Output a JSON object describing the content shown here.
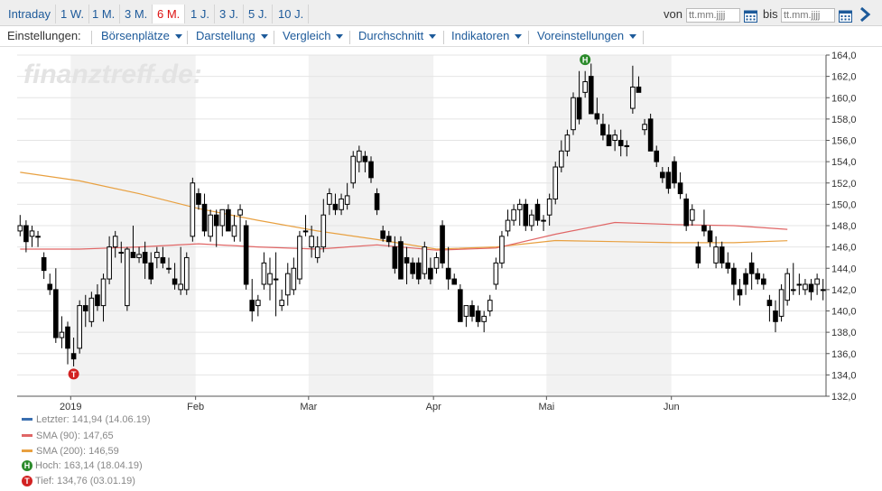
{
  "tabs": [
    {
      "label": "Intraday",
      "active": false
    },
    {
      "label": "1 W.",
      "active": false
    },
    {
      "label": "1 M.",
      "active": false
    },
    {
      "label": "3 M.",
      "active": false
    },
    {
      "label": "6 M.",
      "active": true
    },
    {
      "label": "1 J.",
      "active": false
    },
    {
      "label": "3 J.",
      "active": false
    },
    {
      "label": "5 J.",
      "active": false
    },
    {
      "label": "10 J.",
      "active": false
    }
  ],
  "range": {
    "from_label": "von",
    "to_label": "bis",
    "placeholder": "tt.mm.jjjj"
  },
  "toolbar": {
    "label": "Einstellungen:",
    "menus": [
      "Börsenplätze",
      "Darstellung",
      "Vergleich",
      "Durchschnitt",
      "Indikatoren",
      "Voreinstellungen"
    ]
  },
  "watermark": "finanztreff.de:",
  "legend": {
    "last": "Letzter: 141,94 (14.06.19)",
    "sma90": "SMA (90): 147,65",
    "sma200": "SMA (200): 146,59",
    "high": "Hoch: 163,14 (18.04.19)",
    "low": "Tief: 134,76 (03.01.19)",
    "high_badge": "H",
    "low_badge": "T"
  },
  "colors": {
    "up": "#ffffff",
    "down": "#000000",
    "sma90": "#e06666",
    "sma200": "#e8a040",
    "last": "#3a6fb0",
    "high": "#2a8a2a",
    "low": "#d22222",
    "band": "#f2f2f2"
  },
  "chart_data": {
    "type": "candlestick",
    "ylim": [
      132,
      164
    ],
    "yticks": [
      "132,0",
      "134,0",
      "136,0",
      "138,0",
      "140,0",
      "142,0",
      "144,0",
      "146,0",
      "148,0",
      "150,0",
      "152,0",
      "154,0",
      "156,0",
      "158,0",
      "160,0",
      "162,0",
      "164,0"
    ],
    "xlabels": [
      {
        "label": "2019",
        "i": 9
      },
      {
        "label": "Feb",
        "i": 30
      },
      {
        "label": "Mar",
        "i": 49
      },
      {
        "label": "Apr",
        "i": 70
      },
      {
        "label": "Mai",
        "i": 89
      },
      {
        "label": "Jun",
        "i": 110
      }
    ],
    "bands": [
      [
        9,
        29
      ],
      [
        49,
        69
      ],
      [
        89,
        109
      ]
    ],
    "candles": [
      [
        147.5,
        149.0,
        147.0,
        148.0
      ],
      [
        148.0,
        148.5,
        145.5,
        146.5
      ],
      [
        147.0,
        148.0,
        146.0,
        147.5
      ],
      [
        147.0,
        147.5,
        146.0,
        147.0
      ],
      [
        145.0,
        145.5,
        143.0,
        143.8
      ],
      [
        142.5,
        143.5,
        141.5,
        142.0
      ],
      [
        142.0,
        144.0,
        137.0,
        137.5
      ],
      [
        137.5,
        139.5,
        136.5,
        138.0
      ],
      [
        138.5,
        139.0,
        135.0,
        136.5
      ],
      [
        136.0,
        137.5,
        134.8,
        135.5
      ],
      [
        136.5,
        141.0,
        136.0,
        140.5
      ],
      [
        140.5,
        141.5,
        138.5,
        140.0
      ],
      [
        139.0,
        141.8,
        138.5,
        141.2
      ],
      [
        141.5,
        142.5,
        140.0,
        140.5
      ],
      [
        140.5,
        143.5,
        139.0,
        143.0
      ],
      [
        143.0,
        147.0,
        142.5,
        146.0
      ],
      [
        146.0,
        147.5,
        145.0,
        147.0
      ],
      [
        145.5,
        146.5,
        144.5,
        145.5
      ],
      [
        140.5,
        146.0,
        140.0,
        145.8
      ],
      [
        145.5,
        148.0,
        145.0,
        145.0
      ],
      [
        145.0,
        146.0,
        144.5,
        145.3
      ],
      [
        145.5,
        146.5,
        143.0,
        144.5
      ],
      [
        144.5,
        145.5,
        142.5,
        143.0
      ],
      [
        145.0,
        146.0,
        144.0,
        145.5
      ],
      [
        145.0,
        146.0,
        144.0,
        144.5
      ],
      [
        144.0,
        145.0,
        143.5,
        144.0
      ],
      [
        143.0,
        144.5,
        142.0,
        142.5
      ],
      [
        142.0,
        146.0,
        141.5,
        142.5
      ],
      [
        142.0,
        145.5,
        141.5,
        145.0
      ],
      [
        147.0,
        152.5,
        146.5,
        152.0
      ],
      [
        151.0,
        151.5,
        149.5,
        150.0
      ],
      [
        150.0,
        151.0,
        147.0,
        147.5
      ],
      [
        147.0,
        149.5,
        146.5,
        149.0
      ],
      [
        149.0,
        149.5,
        146.0,
        148.0
      ],
      [
        148.0,
        149.5,
        147.0,
        149.5
      ],
      [
        149.5,
        150.0,
        147.5,
        147.5
      ],
      [
        147.0,
        149.0,
        146.5,
        148.0
      ],
      [
        149.0,
        150.0,
        146.5,
        149.5
      ],
      [
        148.0,
        148.5,
        142.0,
        142.5
      ],
      [
        141.0,
        143.0,
        139.0,
        140.0
      ],
      [
        140.5,
        141.5,
        139.5,
        141.0
      ],
      [
        142.5,
        145.5,
        142.0,
        144.5
      ],
      [
        142.5,
        145.0,
        141.0,
        143.5
      ],
      [
        143.0,
        145.5,
        139.5,
        143.0
      ],
      [
        140.5,
        142.0,
        140.0,
        141.0
      ],
      [
        141.5,
        144.5,
        140.5,
        143.5
      ],
      [
        142.0,
        145.0,
        141.5,
        144.0
      ],
      [
        143.0,
        147.5,
        142.5,
        147.0
      ],
      [
        147.5,
        149.0,
        147.0,
        147.5
      ],
      [
        146.0,
        148.0,
        145.0,
        147.0
      ],
      [
        145.0,
        147.0,
        144.5,
        146.0
      ],
      [
        146.0,
        150.5,
        145.5,
        149.0
      ],
      [
        150.0,
        151.5,
        149.0,
        151.0
      ],
      [
        150.0,
        151.0,
        149.0,
        149.5
      ],
      [
        149.5,
        151.0,
        149.0,
        150.5
      ],
      [
        150.0,
        152.0,
        149.5,
        150.8
      ],
      [
        152.0,
        155.0,
        151.5,
        154.5
      ],
      [
        154.0,
        155.5,
        153.0,
        155.0
      ],
      [
        154.5,
        155.0,
        153.0,
        154.0
      ],
      [
        154.0,
        154.5,
        152.0,
        152.5
      ],
      [
        151.0,
        151.5,
        149.0,
        149.5
      ],
      [
        147.5,
        148.0,
        146.5,
        146.8
      ],
      [
        147.0,
        147.5,
        146.0,
        146.5
      ],
      [
        146.0,
        147.0,
        143.5,
        144.0
      ],
      [
        146.5,
        147.0,
        143.0,
        143.0
      ],
      [
        145.0,
        146.0,
        142.5,
        144.5
      ],
      [
        144.5,
        145.0,
        143.0,
        143.5
      ],
      [
        144.5,
        145.0,
        142.5,
        143.0
      ],
      [
        143.5,
        146.5,
        143.0,
        146.0
      ],
      [
        144.0,
        145.0,
        142.5,
        143.0
      ],
      [
        144.0,
        145.5,
        143.5,
        145.0
      ],
      [
        148.0,
        148.5,
        144.0,
        144.5
      ],
      [
        144.0,
        146.0,
        142.0,
        143.0
      ],
      [
        143.0,
        143.5,
        142.5,
        142.5
      ],
      [
        142.0,
        142.5,
        139.0,
        139.0
      ],
      [
        139.5,
        140.5,
        138.5,
        140.5
      ],
      [
        140.5,
        141.0,
        139.0,
        139.5
      ],
      [
        140.0,
        140.5,
        138.5,
        139.0
      ],
      [
        139.0,
        140.0,
        138.0,
        139.5
      ],
      [
        140.0,
        141.5,
        139.5,
        141.0
      ],
      [
        142.5,
        145.0,
        142.0,
        144.5
      ],
      [
        144.5,
        147.5,
        144.0,
        147.0
      ],
      [
        147.5,
        149.5,
        147.0,
        148.5
      ],
      [
        148.5,
        150.0,
        148.0,
        149.5
      ],
      [
        149.5,
        150.5,
        148.0,
        150.0
      ],
      [
        150.0,
        150.5,
        147.5,
        148.0
      ],
      [
        148.0,
        149.5,
        147.5,
        149.0
      ],
      [
        150.0,
        150.5,
        148.0,
        148.5
      ],
      [
        148.5,
        149.0,
        147.5,
        148.5
      ],
      [
        149.0,
        151.0,
        148.0,
        150.5
      ],
      [
        150.5,
        154.0,
        150.0,
        153.5
      ],
      [
        153.5,
        156.0,
        153.0,
        155.0
      ],
      [
        155.0,
        157.0,
        154.5,
        156.5
      ],
      [
        157.0,
        160.5,
        156.5,
        160.0
      ],
      [
        160.0,
        162.5,
        157.5,
        158.0
      ],
      [
        160.5,
        162.5,
        160.0,
        161.5
      ],
      [
        162.0,
        163.2,
        158.5,
        158.5
      ],
      [
        158.5,
        160.0,
        157.5,
        158.0
      ],
      [
        157.5,
        158.5,
        156.0,
        156.5
      ],
      [
        156.5,
        157.5,
        155.5,
        155.5
      ],
      [
        156.0,
        157.0,
        155.0,
        156.5
      ],
      [
        156.0,
        157.0,
        154.5,
        155.5
      ],
      [
        155.5,
        156.0,
        154.5,
        155.5
      ],
      [
        159.0,
        163.0,
        158.5,
        161.0
      ],
      [
        161.0,
        162.0,
        160.5,
        160.5
      ],
      [
        157.0,
        158.0,
        156.5,
        157.5
      ],
      [
        158.0,
        158.5,
        155.0,
        155.0
      ],
      [
        155.0,
        155.5,
        153.5,
        154.0
      ],
      [
        153.0,
        153.5,
        152.0,
        152.5
      ],
      [
        153.0,
        153.5,
        151.0,
        151.5
      ],
      [
        154.0,
        154.5,
        151.5,
        152.0
      ],
      [
        152.0,
        153.0,
        150.5,
        151.0
      ],
      [
        150.5,
        151.0,
        147.5,
        148.0
      ],
      [
        148.5,
        150.0,
        148.0,
        149.5
      ],
      [
        146.0,
        146.5,
        144.0,
        144.5
      ],
      [
        148.0,
        149.5,
        147.0,
        147.5
      ],
      [
        147.5,
        148.0,
        146.0,
        146.5
      ],
      [
        144.5,
        147.0,
        144.0,
        146.0
      ],
      [
        146.0,
        146.5,
        144.0,
        144.5
      ],
      [
        144.5,
        145.5,
        143.5,
        144.0
      ],
      [
        144.0,
        144.5,
        141.0,
        142.5
      ],
      [
        142.0,
        143.0,
        140.5,
        141.5
      ],
      [
        143.5,
        144.0,
        141.5,
        142.5
      ],
      [
        144.5,
        145.5,
        142.0,
        143.5
      ],
      [
        143.5,
        144.0,
        142.5,
        143.0
      ],
      [
        143.0,
        143.5,
        142.0,
        142.5
      ],
      [
        141.0,
        141.5,
        139.0,
        140.5
      ],
      [
        140.0,
        141.0,
        138.0,
        139.0
      ],
      [
        139.5,
        142.5,
        139.0,
        142.0
      ],
      [
        141.0,
        144.0,
        140.5,
        143.5
      ],
      [
        142.0,
        144.5,
        141.5,
        142.0
      ],
      [
        142.5,
        143.5,
        141.5,
        142.5
      ],
      [
        142.0,
        143.0,
        141.5,
        142.5
      ],
      [
        142.5,
        143.0,
        141.0,
        141.8
      ],
      [
        142.5,
        143.5,
        141.5,
        143.0
      ],
      [
        142.0,
        143.0,
        141.0,
        141.94
      ]
    ],
    "sma90": [
      [
        0,
        145.8
      ],
      [
        10,
        145.8
      ],
      [
        20,
        146.0
      ],
      [
        30,
        146.3
      ],
      [
        40,
        146.0
      ],
      [
        50,
        145.8
      ],
      [
        60,
        146.2
      ],
      [
        70,
        145.7
      ],
      [
        80,
        145.9
      ],
      [
        90,
        147.2
      ],
      [
        100,
        148.3
      ],
      [
        110,
        148.1
      ],
      [
        120,
        148.0
      ],
      [
        129,
        147.65
      ]
    ],
    "sma200": [
      [
        0,
        153.0
      ],
      [
        10,
        152.2
      ],
      [
        20,
        151.0
      ],
      [
        30,
        149.6
      ],
      [
        40,
        148.5
      ],
      [
        50,
        147.5
      ],
      [
        60,
        146.7
      ],
      [
        70,
        145.8
      ],
      [
        80,
        146.0
      ],
      [
        90,
        146.6
      ],
      [
        100,
        146.5
      ],
      [
        110,
        146.4
      ],
      [
        120,
        146.4
      ],
      [
        129,
        146.59
      ]
    ],
    "high": {
      "i": 95,
      "value": 163.14
    },
    "low": {
      "i": 9,
      "value": 134.76
    }
  }
}
